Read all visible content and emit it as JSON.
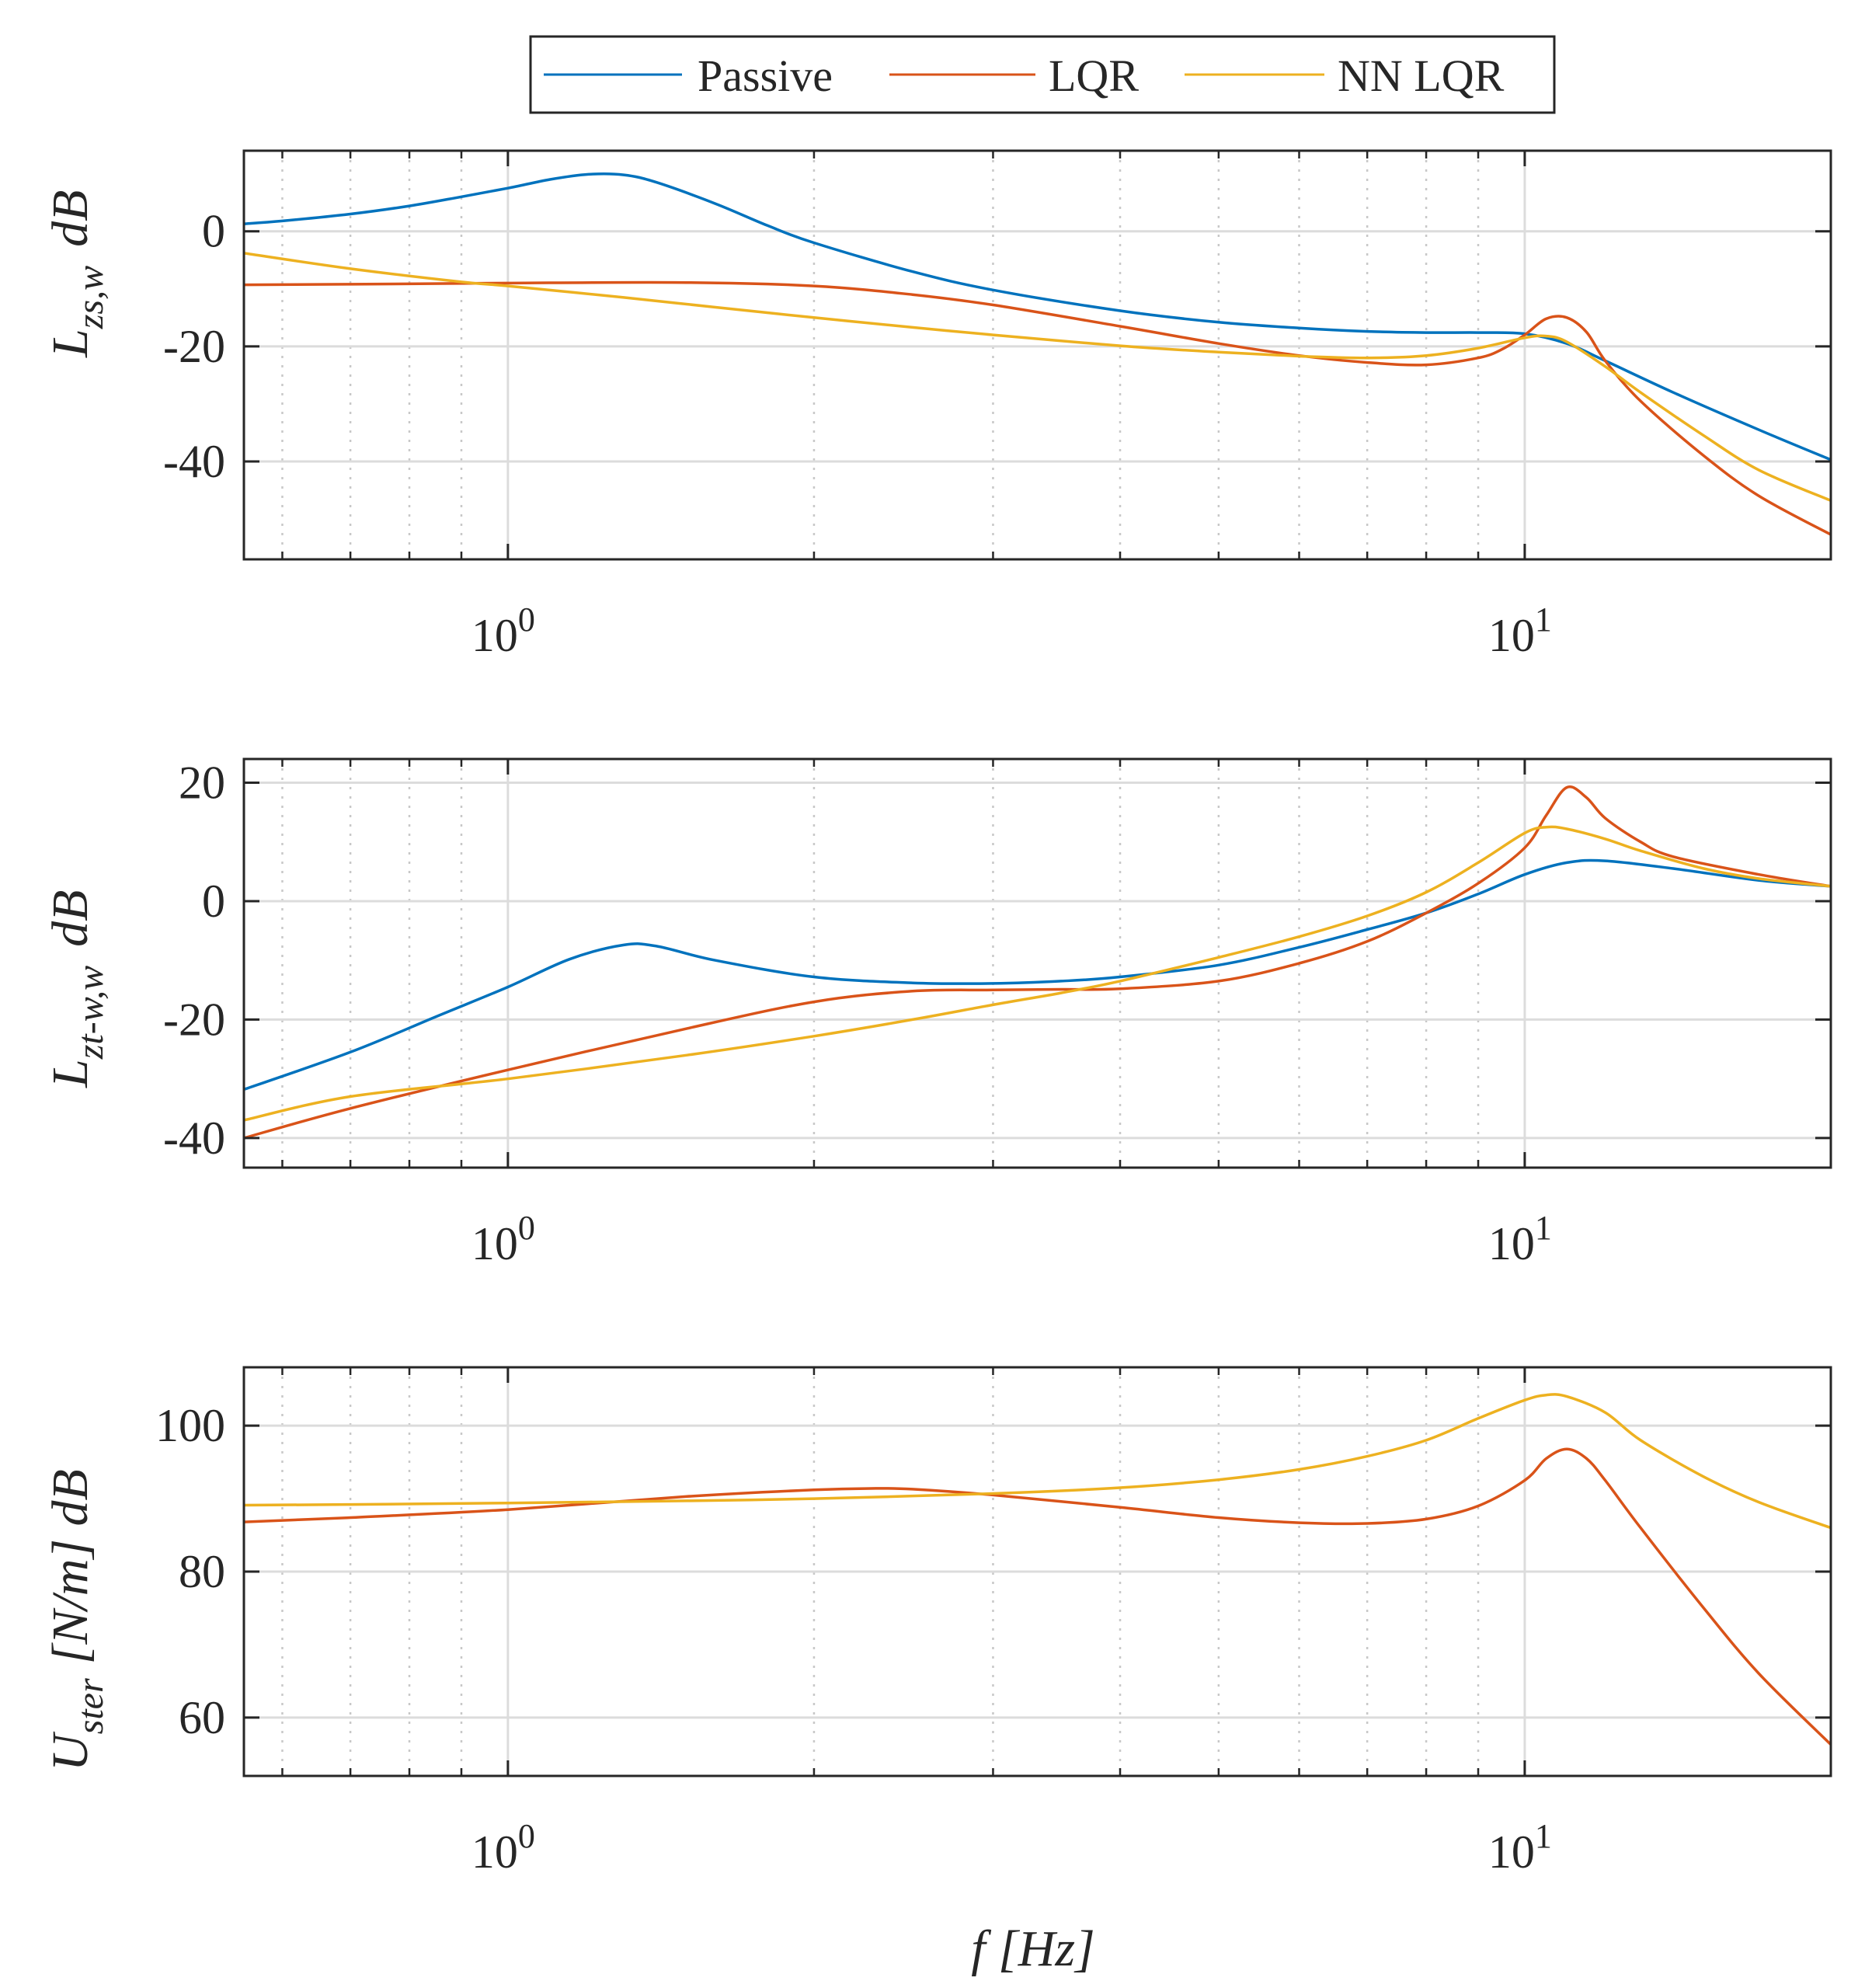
{
  "legend": {
    "entries": [
      {
        "label": "Passive",
        "color": "#0072BD"
      },
      {
        "label": "LQR",
        "color": "#D95319"
      },
      {
        "label": "NN LQR",
        "color": "#EDB120"
      }
    ],
    "placement": "top-center, outside axes, boxed"
  },
  "xlabel": {
    "main": "f [Hz]"
  },
  "chart_data": [
    {
      "type": "line",
      "xscale": "log",
      "xlim": [
        0.55,
        20
      ],
      "ylim": [
        -57,
        14
      ],
      "yticks": [
        -40,
        -20,
        0
      ],
      "ytick_labels": [
        "-40",
        "-20",
        "0"
      ],
      "xtick_major": [
        1,
        10
      ],
      "xtick_labels": [
        {
          "base": "10",
          "exp": "0"
        },
        {
          "base": "10",
          "exp": "1"
        }
      ],
      "ylabel": {
        "main": "L",
        "sub": "zs,w",
        "unit": "dB"
      },
      "grid": true,
      "series": [
        {
          "name": "Passive",
          "color": "#0072BD",
          "x": [
            0.55,
            0.6,
            0.7,
            0.8,
            0.9,
            1.0,
            1.1,
            1.2,
            1.3,
            1.4,
            1.6,
            1.8,
            2.0,
            2.5,
            3.0,
            4.0,
            5.0,
            6.0,
            7.0,
            8.0,
            9.0,
            10.0,
            11.0,
            12.0,
            14.0,
            17.0,
            20.0
          ],
          "y": [
            1.3,
            1.8,
            3.0,
            4.4,
            6.0,
            7.5,
            9.0,
            9.9,
            9.8,
            8.5,
            4.8,
            1.0,
            -2.0,
            -7.0,
            -10.2,
            -13.8,
            -15.8,
            -16.8,
            -17.4,
            -17.6,
            -17.6,
            -17.8,
            -19.5,
            -22.5,
            -28.0,
            -34.5,
            -39.7
          ]
        },
        {
          "name": "LQR",
          "color": "#D95319",
          "x": [
            0.55,
            0.7,
            1.0,
            1.5,
            2.0,
            2.5,
            3.0,
            4.0,
            5.0,
            6.0,
            7.0,
            8.0,
            9.0,
            9.5,
            10.0,
            10.5,
            11.0,
            11.5,
            12.0,
            13.0,
            15.0,
            17.0,
            20.0
          ],
          "y": [
            -9.3,
            -9.2,
            -9.0,
            -8.9,
            -9.5,
            -11.0,
            -12.8,
            -16.5,
            -19.5,
            -21.6,
            -22.8,
            -23.2,
            -22.0,
            -20.5,
            -18.0,
            -15.2,
            -15.0,
            -17.5,
            -22.5,
            -29.5,
            -39.0,
            -46.0,
            -52.7
          ]
        },
        {
          "name": "NN LQR",
          "color": "#EDB120",
          "x": [
            0.55,
            0.7,
            0.9,
            1.0,
            1.3,
            1.6,
            2.0,
            2.5,
            3.0,
            4.0,
            5.0,
            6.0,
            7.0,
            8.0,
            9.0,
            10.0,
            10.5,
            11.0,
            12.0,
            13.0,
            15.0,
            17.0,
            20.0
          ],
          "y": [
            -3.8,
            -6.5,
            -8.8,
            -9.5,
            -11.5,
            -13.2,
            -15.0,
            -16.7,
            -18.0,
            -19.9,
            -21.0,
            -21.7,
            -22.0,
            -21.6,
            -20.3,
            -18.5,
            -18.2,
            -19.2,
            -23.5,
            -28.0,
            -35.5,
            -41.5,
            -46.8
          ]
        }
      ]
    },
    {
      "type": "line",
      "xscale": "log",
      "xlim": [
        0.55,
        20
      ],
      "ylim": [
        -45,
        24
      ],
      "yticks": [
        -40,
        -20,
        0,
        20
      ],
      "ytick_labels": [
        "-40",
        "-20",
        "0",
        "20"
      ],
      "xtick_major": [
        1,
        10
      ],
      "xtick_labels": [
        {
          "base": "10",
          "exp": "0"
        },
        {
          "base": "10",
          "exp": "1"
        }
      ],
      "ylabel": {
        "main": "L",
        "sub": "zt-w,w",
        "unit": "dB"
      },
      "grid": true,
      "series": [
        {
          "name": "Passive",
          "color": "#0072BD",
          "x": [
            0.55,
            0.7,
            0.85,
            1.0,
            1.15,
            1.3,
            1.4,
            1.6,
            2.0,
            2.5,
            3.0,
            3.5,
            4.0,
            5.0,
            6.0,
            7.0,
            8.0,
            9.0,
            10.0,
            11.0,
            12.0,
            14.0,
            17.0,
            20.0
          ],
          "y": [
            -31.8,
            -25.5,
            -19.5,
            -14.5,
            -9.8,
            -7.4,
            -7.6,
            -10.0,
            -12.8,
            -13.8,
            -13.9,
            -13.5,
            -12.8,
            -10.8,
            -7.8,
            -4.8,
            -2.0,
            1.2,
            4.5,
            6.5,
            6.8,
            5.5,
            3.5,
            2.5
          ]
        },
        {
          "name": "LQR",
          "color": "#D95319",
          "x": [
            0.55,
            0.7,
            1.0,
            1.5,
            2.0,
            2.5,
            3.0,
            3.5,
            4.0,
            5.0,
            6.0,
            7.0,
            8.0,
            9.0,
            10.0,
            10.5,
            11.0,
            11.5,
            12.0,
            13.0,
            14.0,
            17.0,
            20.0
          ],
          "y": [
            -40.0,
            -35.0,
            -28.5,
            -21.5,
            -17.0,
            -15.2,
            -15.0,
            -14.9,
            -14.8,
            -13.5,
            -10.5,
            -6.8,
            -2.0,
            3.0,
            9.0,
            14.5,
            19.2,
            17.5,
            14.0,
            10.0,
            7.5,
            4.5,
            2.5
          ]
        },
        {
          "name": "NN LQR",
          "color": "#EDB120",
          "x": [
            0.55,
            0.7,
            1.0,
            1.5,
            2.0,
            2.5,
            3.0,
            3.5,
            4.0,
            5.0,
            6.0,
            7.0,
            8.0,
            9.0,
            10.0,
            10.5,
            11.0,
            12.0,
            13.0,
            15.0,
            17.0,
            20.0
          ],
          "y": [
            -37.0,
            -33.0,
            -30.0,
            -26.0,
            -22.8,
            -20.0,
            -17.5,
            -15.5,
            -13.5,
            -9.5,
            -6.0,
            -2.5,
            1.5,
            6.5,
            11.5,
            12.5,
            12.2,
            10.5,
            8.5,
            5.5,
            3.8,
            2.5
          ]
        }
      ]
    },
    {
      "type": "line",
      "xscale": "log",
      "xlim": [
        0.55,
        20
      ],
      "ylim": [
        52,
        108
      ],
      "yticks": [
        60,
        80,
        100
      ],
      "ytick_labels": [
        "60",
        "80",
        "100"
      ],
      "xtick_major": [
        1,
        10
      ],
      "xtick_labels": [
        {
          "base": "10",
          "exp": "0"
        },
        {
          "base": "10",
          "exp": "1"
        }
      ],
      "ylabel": {
        "main": "U",
        "sub": "ster",
        "unit": "[N/m] dB"
      },
      "grid": true,
      "series": [
        {
          "name": "LQR",
          "color": "#D95319",
          "x": [
            0.55,
            0.7,
            1.0,
            1.5,
            2.0,
            2.3,
            2.5,
            3.0,
            4.0,
            5.0,
            6.0,
            7.0,
            8.0,
            9.0,
            10.0,
            10.5,
            11.0,
            11.5,
            12.0,
            13.0,
            15.0,
            17.0,
            20.0
          ],
          "y": [
            86.8,
            87.4,
            88.5,
            90.3,
            91.2,
            91.4,
            91.3,
            90.5,
            88.8,
            87.4,
            86.7,
            86.6,
            87.2,
            89.0,
            92.5,
            95.5,
            96.8,
            95.5,
            92.5,
            86.0,
            75.0,
            66.0,
            56.3
          ]
        },
        {
          "name": "NN LQR",
          "color": "#EDB120",
          "x": [
            0.55,
            0.7,
            1.0,
            1.5,
            2.0,
            3.0,
            4.0,
            5.0,
            6.0,
            7.0,
            8.0,
            9.0,
            10.0,
            10.5,
            11.0,
            12.0,
            13.0,
            15.0,
            17.0,
            20.0
          ],
          "y": [
            89.1,
            89.2,
            89.4,
            89.7,
            90.0,
            90.7,
            91.5,
            92.6,
            94.0,
            95.8,
            98.0,
            101.0,
            103.5,
            104.2,
            104.0,
            101.8,
            98.0,
            93.0,
            89.5,
            86.0
          ]
        }
      ]
    }
  ]
}
